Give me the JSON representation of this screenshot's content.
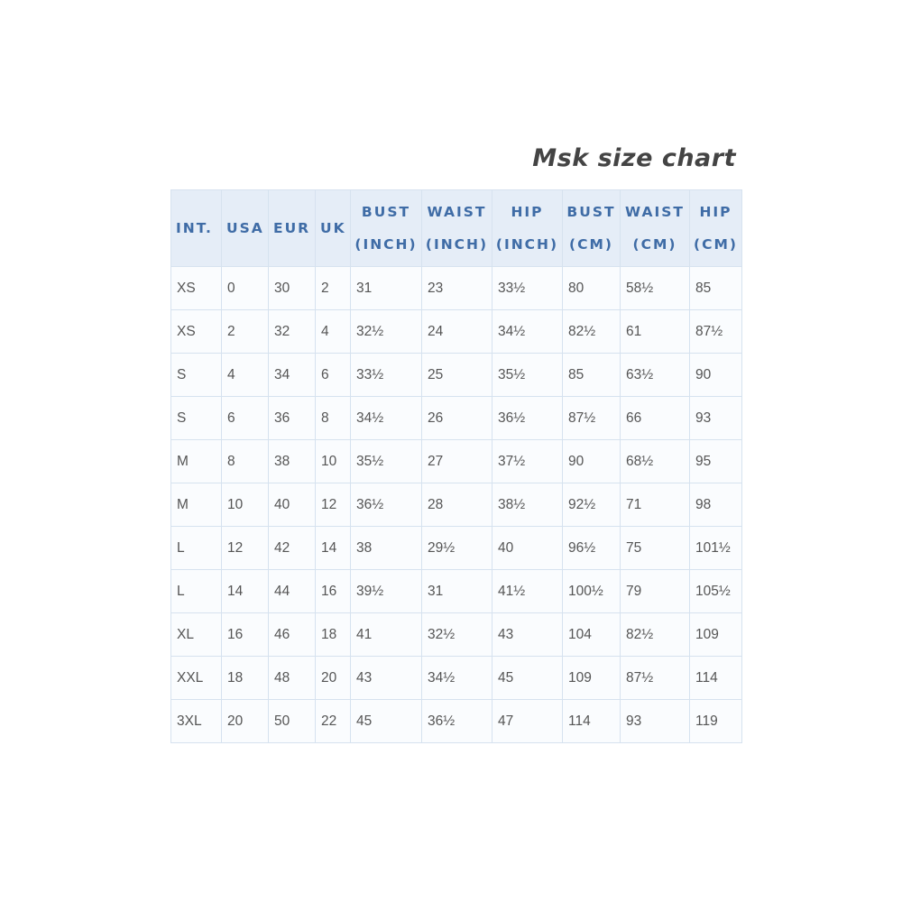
{
  "title": "Msk size chart",
  "headers": [
    [
      "INT.",
      ""
    ],
    [
      "USA",
      ""
    ],
    [
      "EUR",
      ""
    ],
    [
      "UK",
      ""
    ],
    [
      "BUST",
      "(INCH)"
    ],
    [
      "WAIST",
      "(INCH)"
    ],
    [
      "HIP",
      "(INCH)"
    ],
    [
      "BUST",
      "(CM)"
    ],
    [
      "WAIST",
      "(CM)"
    ],
    [
      "HIP",
      "(CM)"
    ]
  ],
  "rows": [
    [
      "XS",
      "0",
      "30",
      "2",
      "31",
      "23",
      "33½",
      "80",
      "58½",
      "85"
    ],
    [
      "XS",
      "2",
      "32",
      "4",
      "32½",
      "24",
      "34½",
      "82½",
      "61",
      "87½"
    ],
    [
      "S",
      "4",
      "34",
      "6",
      "33½",
      "25",
      "35½",
      "85",
      "63½",
      "90"
    ],
    [
      "S",
      "6",
      "36",
      "8",
      "34½",
      "26",
      "36½",
      "87½",
      "66",
      "93"
    ],
    [
      "M",
      "8",
      "38",
      "10",
      "35½",
      "27",
      "37½",
      "90",
      "68½",
      "95"
    ],
    [
      "M",
      "10",
      "40",
      "12",
      "36½",
      "28",
      "38½",
      "92½",
      "71",
      "98"
    ],
    [
      "L",
      "12",
      "42",
      "14",
      "38",
      "29½",
      "40",
      "96½",
      "75",
      "101½"
    ],
    [
      "L",
      "14",
      "44",
      "16",
      "39½",
      "31",
      "41½",
      "100½",
      "79",
      "105½"
    ],
    [
      "XL",
      "16",
      "46",
      "18",
      "41",
      "32½",
      "43",
      "104",
      "82½",
      "109"
    ],
    [
      "XXL",
      "18",
      "48",
      "20",
      "43",
      "34½",
      "45",
      "109",
      "87½",
      "114"
    ],
    [
      "3XL",
      "20",
      "50",
      "22",
      "45",
      "36½",
      "47",
      "114",
      "93",
      "119"
    ]
  ],
  "colors": {
    "header_bg": "#e5edf7",
    "header_text": "#3f6ca6",
    "border": "#d6e2ef",
    "title": "#444444"
  }
}
